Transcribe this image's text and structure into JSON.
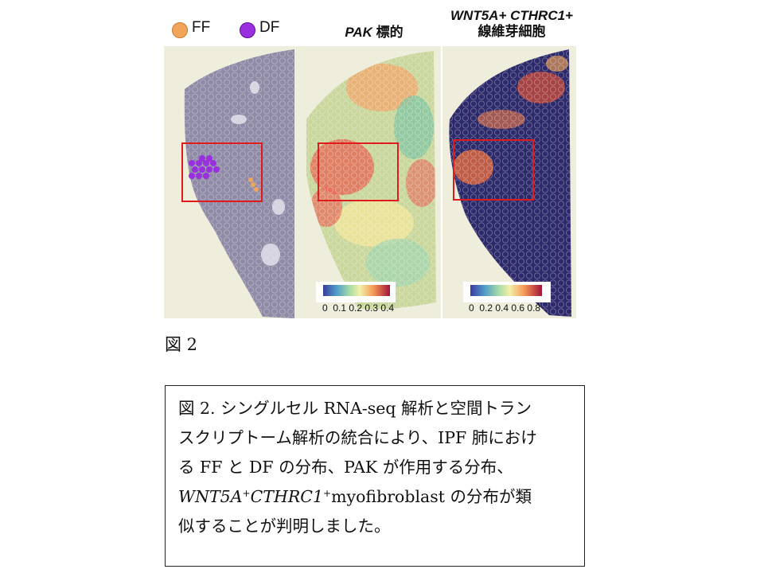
{
  "legend": {
    "items": [
      {
        "label": "FF",
        "color": "#f0a55a"
      },
      {
        "label": "DF",
        "color": "#9a2fe0"
      }
    ]
  },
  "panels": [
    {
      "title_italic": "PAK",
      "title_rest": " 標的"
    },
    {
      "title_line1": "WNT5A+ CTHRC1+",
      "title_line2": "線維芽細胞"
    }
  ],
  "colorbars": [
    {
      "ticks": "0  0.1 0.2 0.3 0.4",
      "range": [
        0,
        0.4
      ]
    },
    {
      "ticks": "0  0.2 0.4 0.6 0.8",
      "range": [
        0,
        0.8
      ]
    }
  ],
  "figure_label": "図 2",
  "caption": {
    "line1": "図 2. シングルセル RNA-seq 解析と空間トラン",
    "line2": "スクリプトーム解析の統合により、IPF 肺におけ",
    "line3": "る FF と DF の分布、PAK が作用する分布、",
    "line4_gene1": "WNT5A",
    "line4_sup": "+",
    "line4_gene2": "CTHRC1",
    "line4_rest": "myofibroblast の分布が類",
    "line5": "似することが判明しました。"
  },
  "colors": {
    "he_bg": "#efeedd",
    "tissue_gray": "#8f8aa6",
    "dark_navy": "#2d2a6b",
    "highlight_box": "#e01b1b"
  }
}
